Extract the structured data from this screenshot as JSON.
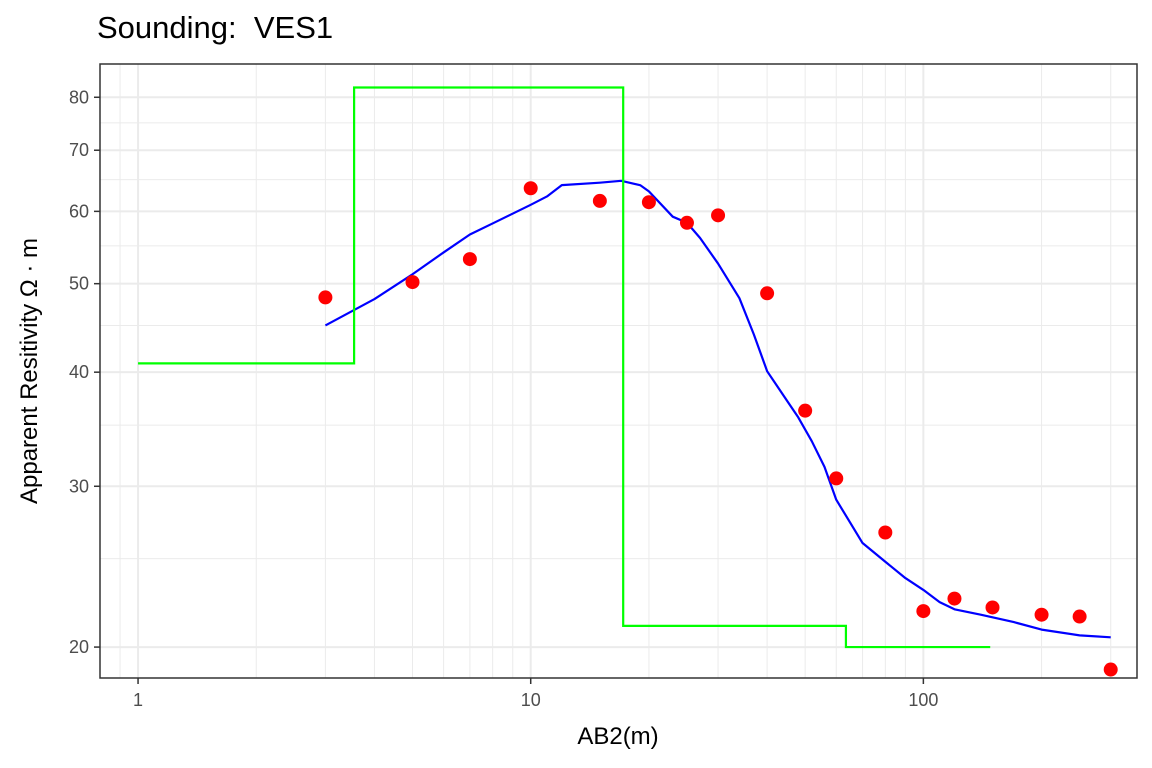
{
  "chart_data": {
    "type": "scatter",
    "title": "Sounding:  VES1",
    "xlabel": "AB2(m)",
    "ylabel": "Apparent Resitivity Ω · m",
    "x_scale": "log",
    "y_scale": "log",
    "xlim": [
      0.8,
      350
    ],
    "ylim": [
      18.5,
      87
    ],
    "x_ticks": [
      1,
      10,
      100
    ],
    "x_tick_labels": [
      "1",
      "10",
      "100"
    ],
    "y_ticks": [
      20,
      30,
      40,
      50,
      60,
      70,
      80
    ],
    "y_tick_labels": [
      "20",
      "30",
      "40",
      "50",
      "60",
      "70",
      "80"
    ],
    "grid": true,
    "legend": "none",
    "colors": {
      "observed": "#ff0000",
      "fitted": "#0000ff",
      "model": "#00ff00"
    },
    "series": [
      {
        "kind": "points",
        "x": [
          3,
          5,
          7,
          10,
          15,
          20,
          25,
          30,
          40,
          50,
          60,
          80,
          100,
          120,
          150,
          200,
          250,
          300
        ],
        "y": [
          48.3,
          50.2,
          53.2,
          63.6,
          61.6,
          61.4,
          58.3,
          59.4,
          48.8,
          36.3,
          30.6,
          26.7,
          21.9,
          22.6,
          22.1,
          21.7,
          21.6,
          18.9
        ]
      },
      {
        "kind": "line",
        "x": [
          3,
          4,
          5,
          6,
          7,
          8,
          10,
          11,
          12,
          15,
          17,
          19,
          20,
          23,
          25,
          27,
          30,
          34,
          37,
          40,
          45,
          48,
          52,
          56,
          60,
          65,
          70,
          80,
          90,
          100,
          110,
          120,
          140,
          170,
          200,
          250,
          300
        ],
        "y": [
          45.0,
          48.1,
          51.2,
          54.1,
          56.6,
          58.2,
          61.0,
          62.3,
          64.1,
          64.5,
          64.8,
          64.1,
          63.1,
          59.2,
          58.3,
          56.1,
          52.6,
          48.2,
          44.0,
          40.1,
          37.2,
          35.7,
          33.6,
          31.5,
          29.0,
          27.4,
          26.0,
          24.8,
          23.8,
          23.1,
          22.4,
          22.0,
          21.7,
          21.3,
          20.9,
          20.6,
          20.5
        ]
      },
      {
        "kind": "step",
        "x": [
          1,
          3.55,
          3.55,
          17.2,
          17.2,
          63.5,
          63.5,
          148
        ],
        "y": [
          40.9,
          40.9,
          82.0,
          82.0,
          21.1,
          21.1,
          20.0,
          20.0
        ]
      }
    ]
  }
}
